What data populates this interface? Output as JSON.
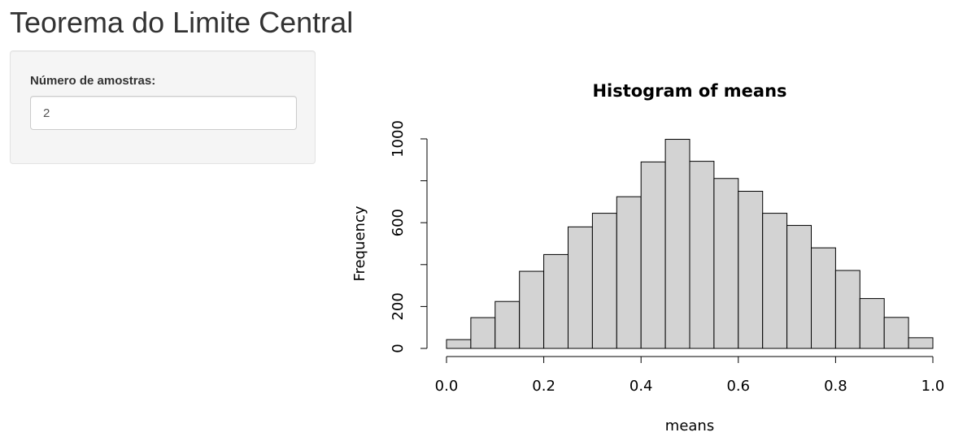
{
  "page": {
    "title": "Teorema do Limite Central"
  },
  "sidebar": {
    "input_label": "Número de amostras:",
    "input_value": "2"
  },
  "chart_data": {
    "type": "bar",
    "title": "Histogram of means",
    "xlabel": "means",
    "ylabel": "Frequency",
    "bin_edges": [
      0.0,
      0.05,
      0.1,
      0.15,
      0.2,
      0.25,
      0.3,
      0.35,
      0.4,
      0.45,
      0.5,
      0.55,
      0.6,
      0.65,
      0.7,
      0.75,
      0.8,
      0.85,
      0.9,
      0.95,
      1.0
    ],
    "values": [
      42,
      147,
      224,
      368,
      448,
      580,
      645,
      724,
      890,
      998,
      893,
      811,
      750,
      645,
      587,
      480,
      372,
      238,
      148,
      51
    ],
    "xlim": [
      0.0,
      1.0
    ],
    "ylim": [
      0,
      1000
    ],
    "x_ticks": [
      0.0,
      0.2,
      0.4,
      0.6,
      0.8,
      1.0
    ],
    "x_tick_labels": [
      "0.0",
      "0.2",
      "0.4",
      "0.6",
      "0.8",
      "1.0"
    ],
    "y_ticks": [
      0,
      200,
      400,
      600,
      800,
      1000
    ],
    "y_tick_labels": [
      "0",
      "200",
      "",
      "600",
      "",
      "1000"
    ],
    "grid": false,
    "bar_color": "#d3d3d3",
    "bar_edge_color": "#000000"
  }
}
